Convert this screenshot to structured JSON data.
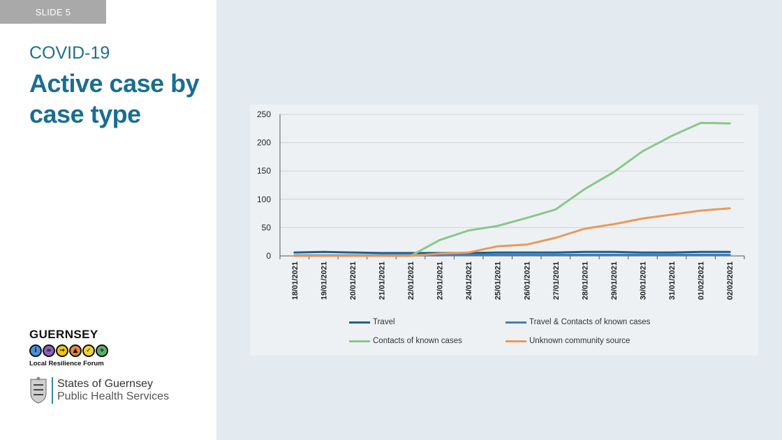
{
  "slide": {
    "tag": "SLIDE 5"
  },
  "heading": {
    "kicker": "COVID-19",
    "title": "Active case by case type"
  },
  "logos": {
    "grf_name": "GUERNSEY",
    "grf_sub": "Local Resilience Forum",
    "sog_line1": "States of Guernsey",
    "sog_line2": "Public Health Services"
  },
  "colors": {
    "accent": "#1a6e91",
    "travel": "#1f5f8b",
    "travel_contacts": "#3f7fc0",
    "contacts": "#86c98a",
    "unknown": "#e9995a"
  },
  "chart_data": {
    "type": "line",
    "title": "",
    "xlabel": "",
    "ylabel": "",
    "ylim": [
      0,
      250
    ],
    "yticks": [
      0,
      50,
      100,
      150,
      200,
      250
    ],
    "categories": [
      "18/01/2021",
      "19/01/2021",
      "20/01/2021",
      "21/01/2021",
      "22/01/2021",
      "23/01/2021",
      "24/01/2021",
      "25/01/2021",
      "26/01/2021",
      "27/01/2021",
      "28/01/2021",
      "29/01/2021",
      "30/01/2021",
      "31/01/2021",
      "01/02/2021",
      "02/02/2021"
    ],
    "series": [
      {
        "name": "Travel",
        "color_key": "travel",
        "values": [
          6,
          7,
          6,
          5,
          5,
          5,
          5,
          6,
          6,
          6,
          7,
          7,
          6,
          6,
          7,
          7
        ]
      },
      {
        "name": "Travel & Contacts of known cases",
        "color_key": "travel_contacts",
        "values": [
          1,
          1,
          1,
          1,
          1,
          1,
          2,
          2,
          2,
          2,
          2,
          2,
          2,
          2,
          2,
          2
        ]
      },
      {
        "name": "Contacts of known cases",
        "color_key": "contacts",
        "values": [
          0,
          0,
          0,
          0,
          0,
          28,
          45,
          53,
          67,
          82,
          118,
          148,
          185,
          212,
          235,
          234
        ]
      },
      {
        "name": "Unknown community source",
        "color_key": "unknown",
        "values": [
          0,
          0,
          0,
          0,
          0,
          4,
          6,
          17,
          20,
          32,
          48,
          56,
          66,
          73,
          80,
          84
        ]
      }
    ],
    "legend_position": "bottom",
    "grid": true
  }
}
